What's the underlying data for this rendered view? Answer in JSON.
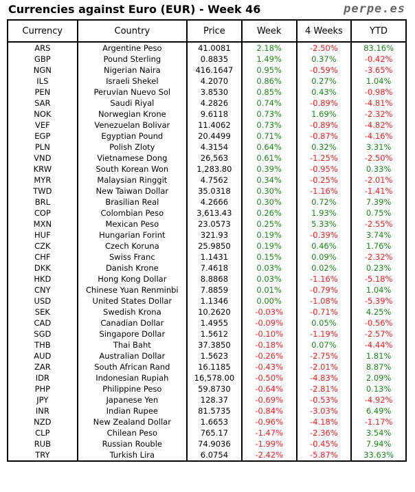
{
  "title": "Currencies against Euro (EUR) - Week 46",
  "brand": "perpe.es",
  "colors": {
    "positive": "#1a8a1a",
    "negative": "#ff1a1a"
  },
  "headers": [
    "Currency",
    "Country",
    "Price",
    "Week",
    "4 Weeks",
    "YTD"
  ],
  "rows": [
    [
      "ARS",
      "Argentine Peso",
      "41.0081",
      "2.18%",
      "-2.50%",
      "83.16%"
    ],
    [
      "GBP",
      "Pound Sterling",
      "0.8835",
      "1.49%",
      "0.37%",
      "-0.42%"
    ],
    [
      "NGN",
      "Nigerian Naira",
      "416.1647",
      "0.95%",
      "-0.59%",
      "-3.65%"
    ],
    [
      "ILS",
      "Israeli Shekel",
      "4.2070",
      "0.86%",
      "0.27%",
      "1.04%"
    ],
    [
      "PEN",
      "Peruvian Nuevo Sol",
      "3.8530",
      "0.85%",
      "0.43%",
      "-0.98%"
    ],
    [
      "SAR",
      "Saudi Riyal",
      "4.2826",
      "0.74%",
      "-0.89%",
      "-4.81%"
    ],
    [
      "NOK",
      "Norwegian Krone",
      "9.6118",
      "0.73%",
      "1.69%",
      "-2.32%"
    ],
    [
      "VEF",
      "Venezuelan Bolivar",
      "11.4062",
      "0.73%",
      "-0.89%",
      "-4.82%"
    ],
    [
      "EGP",
      "Egyptian Pound",
      "20.4499",
      "0.71%",
      "-0.87%",
      "-4.16%"
    ],
    [
      "PLN",
      "Polish Zloty",
      "4.3154",
      "0.64%",
      "0.32%",
      "3.31%"
    ],
    [
      "VND",
      "Vietnamese Dong",
      "26,563",
      "0.61%",
      "-1.25%",
      "-2.50%"
    ],
    [
      "KRW",
      "South Korean Won",
      "1,283.80",
      "0.39%",
      "-0.95%",
      "0.33%"
    ],
    [
      "MYR",
      "Malaysian Ringgit",
      "4.7562",
      "0.34%",
      "-0.25%",
      "-2.01%"
    ],
    [
      "TWD",
      "New Taiwan Dollar",
      "35.0318",
      "0.30%",
      "-1.16%",
      "-1.41%"
    ],
    [
      "BRL",
      "Brasilian Real",
      "4.2666",
      "0.30%",
      "0.72%",
      "7.39%"
    ],
    [
      "COP",
      "Colombian Peso",
      "3,613.43",
      "0.26%",
      "1.93%",
      "0.75%"
    ],
    [
      "MXN",
      "Mexican Peso",
      "23.0573",
      "0.25%",
      "5.33%",
      "-2.55%"
    ],
    [
      "HUF",
      "Hungarian Forint",
      "321.93",
      "0.19%",
      "-0.39%",
      "3.74%"
    ],
    [
      "CZK",
      "Czech Koruna",
      "25.9850",
      "0.19%",
      "0.46%",
      "1.76%"
    ],
    [
      "CHF",
      "Swiss Franc",
      "1.1431",
      "0.15%",
      "0.09%",
      "-2.32%"
    ],
    [
      "DKK",
      "Danish Krone",
      "7.4618",
      "0.03%",
      "0.02%",
      "0.23%"
    ],
    [
      "HKD",
      "Hong Kong Dollar",
      "8.8868",
      "0.03%",
      "-1.16%",
      "-5.18%"
    ],
    [
      "CNY",
      "Chinese Yuan Renminbi",
      "7.8859",
      "0.01%",
      "-0.79%",
      "1.04%"
    ],
    [
      "USD",
      "United States Dollar",
      "1.1346",
      "0.00%",
      "-1.08%",
      "-5.39%"
    ],
    [
      "SEK",
      "Swedish Krona",
      "10.2620",
      "-0.03%",
      "-0.71%",
      "4.25%"
    ],
    [
      "CAD",
      "Canadian Dollar",
      "1.4955",
      "-0.09%",
      "0.05%",
      "-0.56%"
    ],
    [
      "SGD",
      "Singapore Dollar",
      "1.5612",
      "-0.10%",
      "-1.19%",
      "-2.57%"
    ],
    [
      "THB",
      "Thai Baht",
      "37.3850",
      "-0.18%",
      "0.07%",
      "-4.44%"
    ],
    [
      "AUD",
      "Australian Dollar",
      "1.5623",
      "-0.26%",
      "-2.75%",
      "1.81%"
    ],
    [
      "ZAR",
      "South African Rand",
      "16.1185",
      "-0.43%",
      "-2.01%",
      "8.87%"
    ],
    [
      "IDR",
      "Indonesian Rupiah",
      "16,578.00",
      "-0.50%",
      "-4.83%",
      "2.09%"
    ],
    [
      "PHP",
      "Philippine Peso",
      "59.8730",
      "-0.64%",
      "-2.81%",
      "0.13%"
    ],
    [
      "JPY",
      "Japanese Yen",
      "128.37",
      "-0.69%",
      "-0.53%",
      "-4.92%"
    ],
    [
      "INR",
      "Indian Rupee",
      "81.5735",
      "-0.84%",
      "-3.03%",
      "6.49%"
    ],
    [
      "NZD",
      "New Zealand Dollar",
      "1.6653",
      "-0.96%",
      "-4.18%",
      "-1.17%"
    ],
    [
      "CLP",
      "Chilean Peso",
      "765.17",
      "-1.47%",
      "-2.36%",
      "3.54%"
    ],
    [
      "RUB",
      "Russian Rouble",
      "74.9036",
      "-1.99%",
      "-0.45%",
      "7.94%"
    ],
    [
      "TRY",
      "Turkish Lira",
      "6.0754",
      "-2.42%",
      "-5.87%",
      "33.63%"
    ]
  ]
}
